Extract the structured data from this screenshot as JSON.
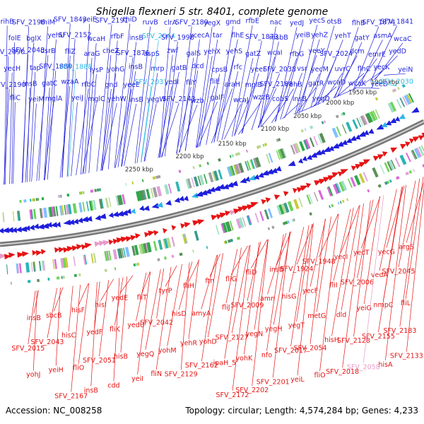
{
  "title": "Shigella flexneri 5 str. 8401, complete genome",
  "accession_text": "Accession: NC_008258",
  "topology_text": "Topology: circular; Length: 4,574,284 bp; Genes: 4,233",
  "colors": {
    "forward": "#1f1fdc",
    "forward_alt": "#2eb8e6",
    "reverse": "#e61414",
    "reverse_alt": "#e69ac8",
    "backbone": "#888888"
  },
  "kbp_ticks": [
    "1900 kbp",
    "1950 kbp",
    "2000 kbp",
    "2050 kbp",
    "2100 kbp",
    "2150 kbp",
    "2200 kbp",
    "2250 kbp"
  ],
  "forward_genes": [
    "rihB",
    "SFV_2196",
    "thiM",
    "SFV_1843",
    "yeiE",
    "SFV_2191",
    "thiD",
    "ruvB",
    "clrA",
    "SFV_2189",
    "yegX",
    "gmd",
    "rfbE",
    "nac",
    "yedJ",
    "yecS",
    "otsB",
    "flhB",
    "SFV_1874",
    "SFV_1841",
    "folE",
    "bglX",
    "yehU",
    "SFV_2152",
    "wcaH",
    "rfbF",
    "insB",
    "SFV_2044",
    "SFV_1998",
    "ycecA",
    "tar",
    "flhE",
    "SFV_1873",
    "msbB",
    "yeiB",
    "yehZ",
    "yehT",
    "gatY",
    "asmA",
    "wcaC",
    "SFV_2090",
    "SFV_2048",
    "dsrB",
    "fliZ",
    "araG",
    "cheZ",
    "SFV_1876",
    "aspS",
    "zwf",
    "galS",
    "yehX",
    "yehS",
    "gatZ",
    "wcaI",
    "rfbG",
    "yeeY",
    "SFV_2024",
    "dcm",
    "emrE",
    "yedD",
    "yecH",
    "tap",
    "SFV_1880",
    "SFV_1888",
    "lysP",
    "yohG",
    "insB",
    "mrp",
    "gatB",
    "dcd",
    "cpsB",
    "rfc",
    "yeeF",
    "SFV_2038",
    "vsr",
    "yecM",
    "uvrC",
    "flhC",
    "yecK",
    "yeiN",
    "SFV_2190",
    "insB",
    "gatC",
    "wzaA",
    "rfbC",
    "gnd",
    "yeeE",
    "SFV_2031",
    "yedI",
    "fliY",
    "fliE",
    "araH",
    "mglB",
    "SFV_2188",
    "yehB",
    "gatR",
    "wcaD",
    "wcaK",
    "yeeD",
    "SFV_2030",
    "fliC",
    "yeiM",
    "mglA",
    "yeiJ",
    "mglC",
    "yehW",
    "insB",
    "yegW",
    "SFV_2143",
    "wzb",
    "galF",
    "wcaJ",
    "wzzB",
    "cobS",
    "insB",
    "yegD"
  ],
  "reverse_genes": [
    "argS",
    "yecG",
    "yecT",
    "yecI",
    "SFV_1948",
    "SFV_1924",
    "insB",
    "fliD",
    "fliG",
    "ftn",
    "fliH",
    "tyrP",
    "fliT",
    "yedE",
    "hisI",
    "hisF",
    "sbcB",
    "insB",
    "SFV_2045",
    "vedA",
    "SFV_2006",
    "fliI",
    "yecF",
    "hisG",
    "amn",
    "SFV_2009",
    "fliJ",
    "amyA",
    "hisD",
    "SFV_2042",
    "yedU",
    "fliK",
    "yedF",
    "hisC",
    "SFV_2043",
    "SFV_2015",
    "fliL",
    "nmpC",
    "yeiG",
    "dld",
    "metG",
    "yegT",
    "yegH",
    "yegN",
    "SFV_2127",
    "yohD",
    "yehR",
    "yohM",
    "yegQ",
    "hisB",
    "SFV_2051",
    "fliO",
    "yeiH",
    "yohJ",
    "SFV_2183",
    "SFV_2155",
    "SFV_2128",
    "hisH",
    "SFV_2054",
    "SFV_2017",
    "nfo",
    "yohK",
    "ipaH_5",
    "SFV_2162",
    "SFV_2129",
    "fliN",
    "yeiI",
    "cdd",
    "insB",
    "SFV_2167",
    "yegR",
    "alkA",
    "SFV_2133",
    "hisA",
    "SFV_2058",
    "SFV_2018",
    "fliO",
    "yeiL",
    "SFV_2201",
    "SFV_2202",
    "SFV_2172",
    "SFV_2134",
    "SFV_2061",
    "SFV_2020",
    "fliP",
    "SFV_2136",
    "SFV_2067",
    "SFV_2141"
  ]
}
